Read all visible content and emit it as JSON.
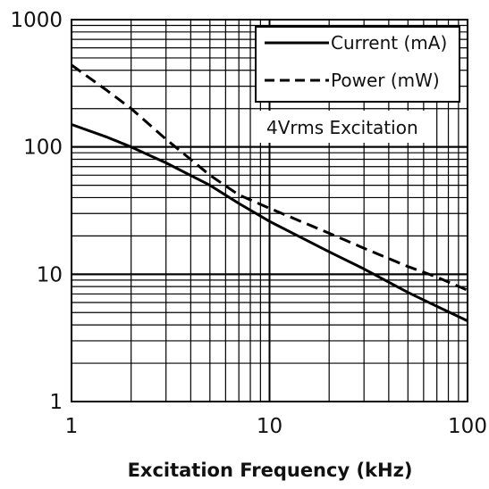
{
  "chart_data": {
    "type": "line",
    "title": "",
    "xlabel": "Excitation Frequency (kHz)",
    "ylabel": "",
    "x_scale": "log",
    "y_scale": "log",
    "xlim": [
      1,
      100
    ],
    "ylim": [
      1,
      1000
    ],
    "x_ticks": [
      "1",
      "10",
      "100"
    ],
    "y_ticks": [
      "1",
      "10",
      "100",
      "1000"
    ],
    "grid": true,
    "legend_position": "top-right",
    "annotation": "4Vrms Excitation",
    "series": [
      {
        "name": "Current (mA)",
        "style": "solid",
        "x": [
          1,
          1.5,
          2,
          3,
          5,
          7,
          10,
          20,
          30,
          50,
          70,
          100
        ],
        "y": [
          150,
          120,
          100,
          75,
          50,
          36,
          26,
          15,
          11,
          7.2,
          5.6,
          4.3
        ]
      },
      {
        "name": "Power (mW)",
        "style": "dashed",
        "x": [
          1,
          1.5,
          2,
          3,
          5,
          7,
          10,
          20,
          30,
          50,
          70,
          100
        ],
        "y": [
          440,
          280,
          200,
          115,
          60,
          42,
          33,
          21,
          16,
          11.5,
          9.5,
          7.5
        ]
      }
    ]
  }
}
